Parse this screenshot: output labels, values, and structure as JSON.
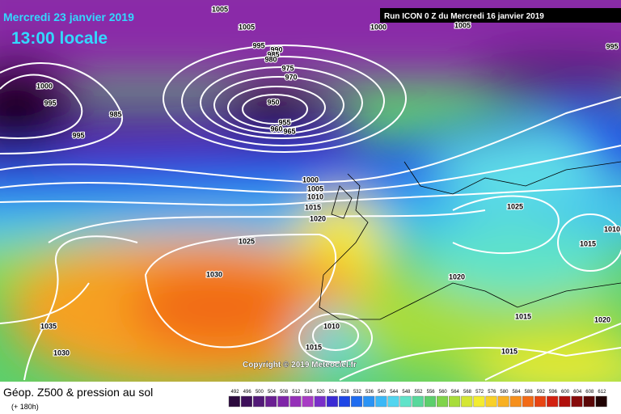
{
  "header": {
    "date": "Mercredi 23 janvier 2019",
    "time": "13:00 locale",
    "run": "Run ICON 0 Z du Mercredi 16 janvier 2019"
  },
  "copyright": "Copyright © 2019 Meteociel.fr",
  "isobar_labels": [
    "1005",
    "1005",
    "1000",
    "1005",
    "995",
    "990",
    "985",
    "980",
    "975",
    "970",
    "950",
    "955",
    "960",
    "965",
    "1000",
    "995",
    "985",
    "995",
    "995",
    "1000",
    "1005",
    "1010",
    "1015",
    "1020",
    "1025",
    "1025",
    "1015",
    "1010",
    "1030",
    "1020",
    "1035",
    "1010",
    "1015",
    "1030",
    "1015",
    "1020",
    "1015"
  ],
  "legend": {
    "title": "Géop. Z500 & pression au sol",
    "subtitle": "(+ 180h)",
    "labels": [
      "492",
      "496",
      "500",
      "504",
      "508",
      "512",
      "516",
      "520",
      "524",
      "528",
      "532",
      "536",
      "540",
      "544",
      "548",
      "552",
      "556",
      "560",
      "564",
      "568",
      "572",
      "576",
      "580",
      "584",
      "588",
      "592",
      "596",
      "600",
      "604",
      "608",
      "612"
    ],
    "colors": [
      "#2b0a3d",
      "#3d0f5a",
      "#531a78",
      "#6a1f92",
      "#7f25a8",
      "#9530b8",
      "#a83cc4",
      "#7a2fc9",
      "#3b2ad4",
      "#1e46e6",
      "#1f6cf0",
      "#2a93f5",
      "#3bb8f7",
      "#52d5ef",
      "#5fe3c9",
      "#58d89c",
      "#5ccf6c",
      "#7fd44a",
      "#a8dd3a",
      "#d4e634",
      "#f3ec30",
      "#f8d028",
      "#f8b022",
      "#f6901c",
      "#f26a16",
      "#e84412",
      "#d2200f",
      "#b0100c",
      "#860a0a",
      "#5a0606",
      "#200202"
    ]
  }
}
